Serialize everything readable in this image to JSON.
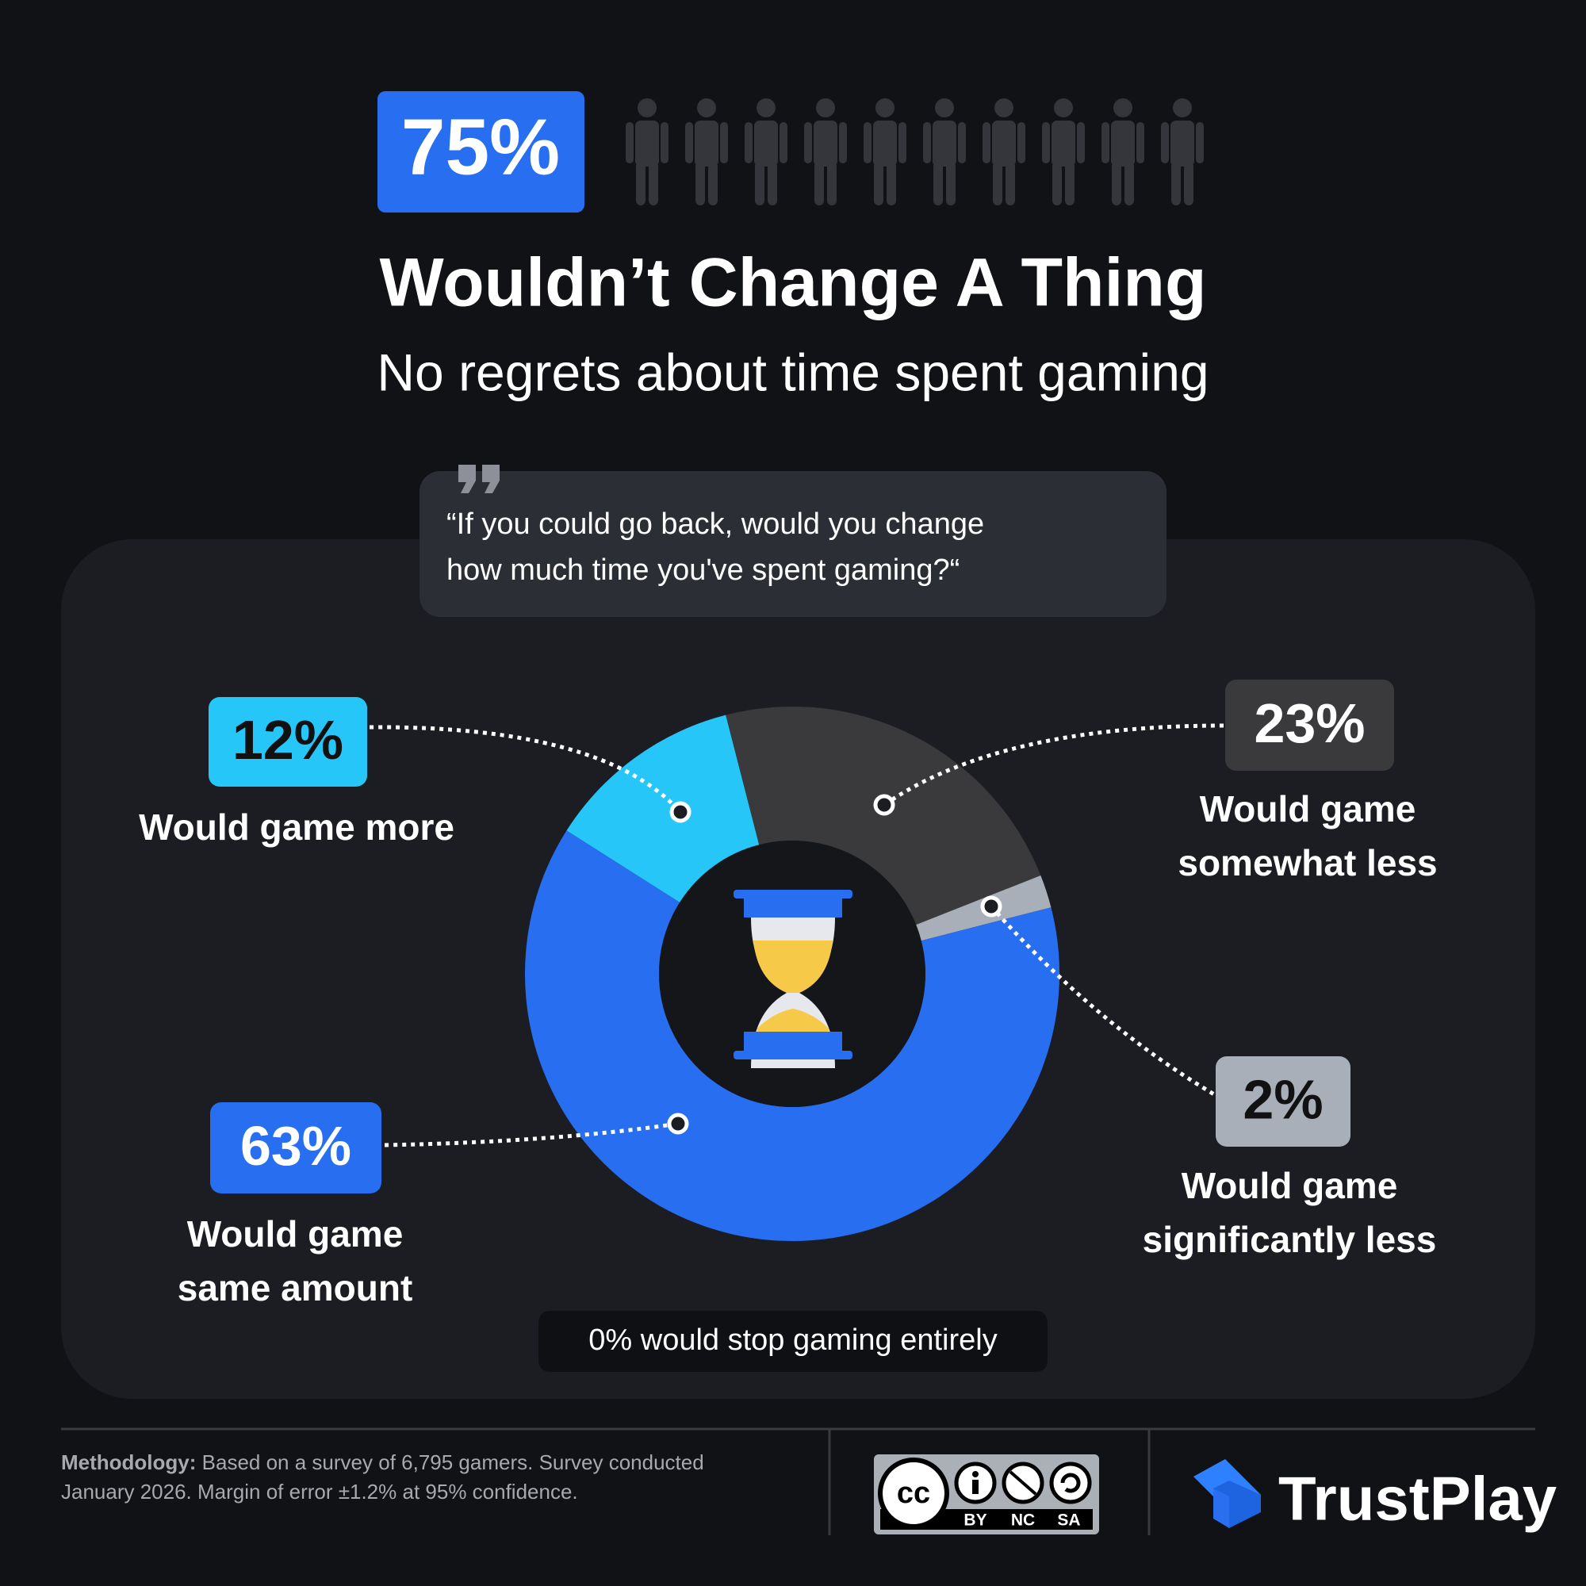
{
  "header": {
    "stat": {
      "value": 75,
      "label": "75%"
    },
    "title": "Wouldn’t Change A Thing",
    "subtitle": "No regrets about time spent gaming",
    "quote": {
      "lines": [
        "“If you could go back, would you change",
        "how much time you've spent gaming?“"
      ]
    }
  },
  "chart_data": {
    "type": "pie",
    "categories": [
      "Would game more",
      "Would game somewhat less",
      "Would game significantly less",
      "Would game same amount"
    ],
    "values": [
      12,
      23,
      2,
      63
    ],
    "value_labels": [
      "12%",
      "23%",
      "2%",
      "63%"
    ],
    "colors": [
      "#26c6f9",
      "#3a3a3c",
      "#a9afb8",
      "#276ef1"
    ],
    "annotation": "0% would stop gaming entirely"
  },
  "footer": {
    "methodology_label": "Methodology:",
    "methodology_text": "Based on a survey of 6,795 gamers. Survey conducted January 2026. Margin of error ±1.2% at 95% confidence.",
    "license": {
      "cc": "cc",
      "terms": [
        "BY",
        "NC",
        "SA"
      ]
    },
    "brand": "TrustPlay"
  }
}
